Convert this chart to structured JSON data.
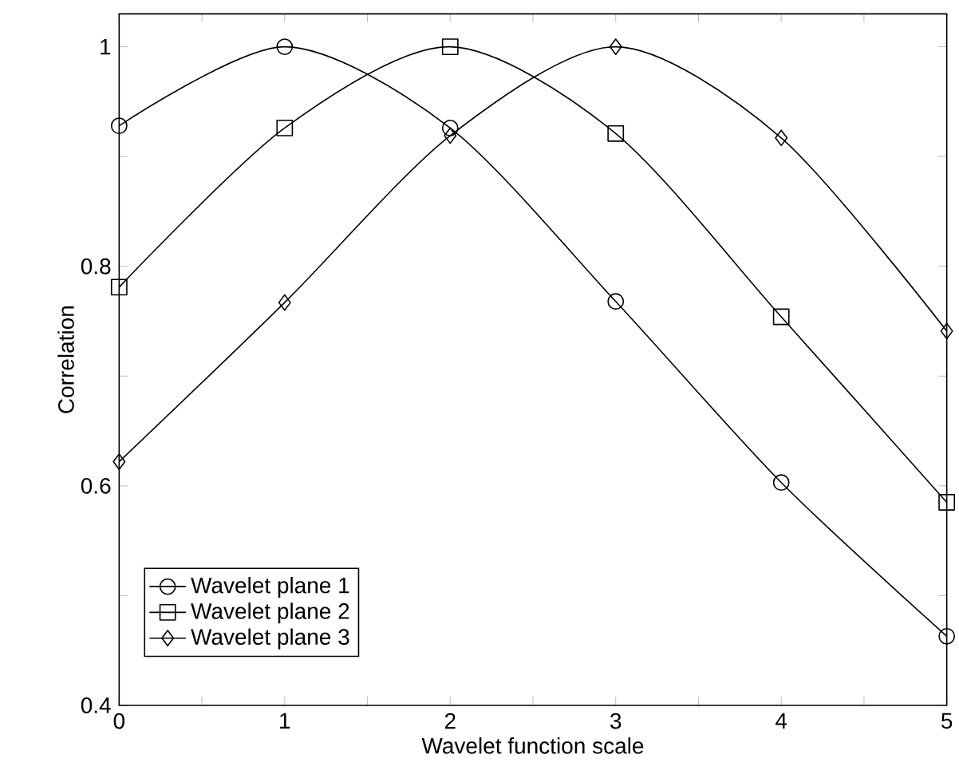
{
  "chart_data": {
    "type": "line",
    "xlabel": "Wavelet function scale",
    "ylabel": "Correlation",
    "x": [
      0,
      1,
      2,
      3,
      4,
      5
    ],
    "series": [
      {
        "name": "Wavelet plane 1",
        "color": "#000000",
        "marker": "circle",
        "values": [
          0.928,
          1.0,
          0.926,
          0.768,
          0.603,
          0.463
        ]
      },
      {
        "name": "Wavelet plane 2",
        "color": "#000000",
        "marker": "square",
        "values": [
          0.781,
          0.926,
          1.0,
          0.921,
          0.754,
          0.585
        ]
      },
      {
        "name": "Wavelet plane 3",
        "color": "#000000",
        "marker": "diamond",
        "values": [
          0.622,
          0.767,
          0.919,
          1.0,
          0.917,
          0.741
        ]
      }
    ],
    "xlim": [
      0,
      5
    ],
    "ylim": [
      0.4,
      1.03
    ],
    "xticks": [
      0,
      {
        "value": 0.5,
        "label": null
      },
      1,
      {
        "value": 1.5,
        "label": null
      },
      2,
      {
        "value": 2.5,
        "label": null
      },
      3,
      {
        "value": 3.5,
        "label": null
      },
      4,
      {
        "value": 4.5,
        "label": null
      },
      5
    ],
    "yticks": [
      {
        "value": 0.4,
        "label": "0.4"
      },
      {
        "value": 0.5,
        "label": null
      },
      {
        "value": 0.6,
        "label": "0.6"
      },
      {
        "value": 0.7,
        "label": null
      },
      {
        "value": 0.8,
        "label": "0.8"
      },
      {
        "value": 0.9,
        "label": null
      },
      1
    ],
    "legend": "bottom left",
    "grid": false,
    "line_style": "solid"
  }
}
